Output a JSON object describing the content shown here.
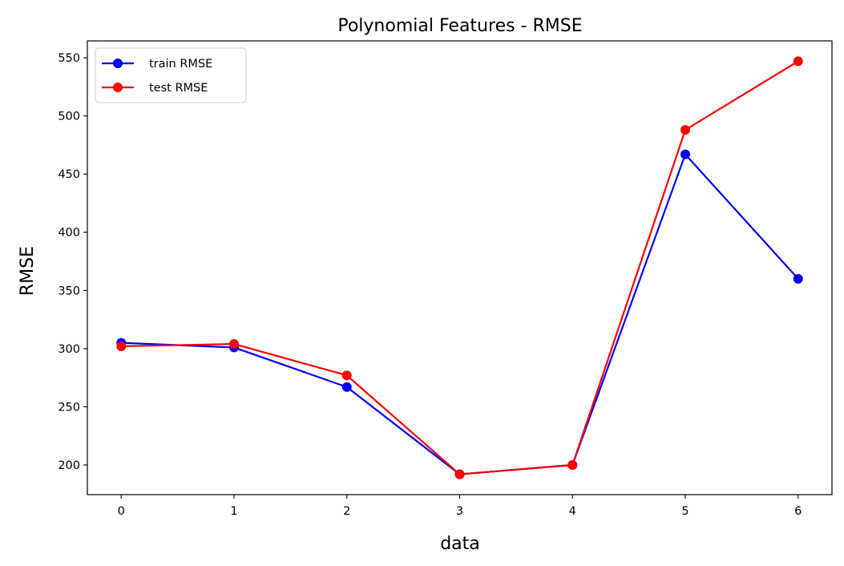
{
  "chart_data": {
    "type": "line",
    "title": "Polynomial Features - RMSE",
    "xlabel": "data",
    "ylabel": "RMSE",
    "x": [
      0,
      1,
      2,
      3,
      4,
      5,
      6
    ],
    "xlim": [
      -0.3,
      6.3
    ],
    "ylim": [
      174.5,
      564.5
    ],
    "xticks": [
      "0",
      "1",
      "2",
      "3",
      "4",
      "5",
      "6"
    ],
    "yticks": [
      "200",
      "250",
      "300",
      "350",
      "400",
      "450",
      "500",
      "550"
    ],
    "grid": false,
    "legend_position": "top-left",
    "series": [
      {
        "name": "train RMSE",
        "color": "#0000ff",
        "marker": "circle",
        "values": [
          305,
          301,
          267,
          192,
          200,
          467,
          360
        ]
      },
      {
        "name": "test RMSE",
        "color": "#ff0000",
        "marker": "circle",
        "values": [
          302,
          304,
          277,
          192,
          200,
          488,
          547
        ]
      }
    ]
  }
}
